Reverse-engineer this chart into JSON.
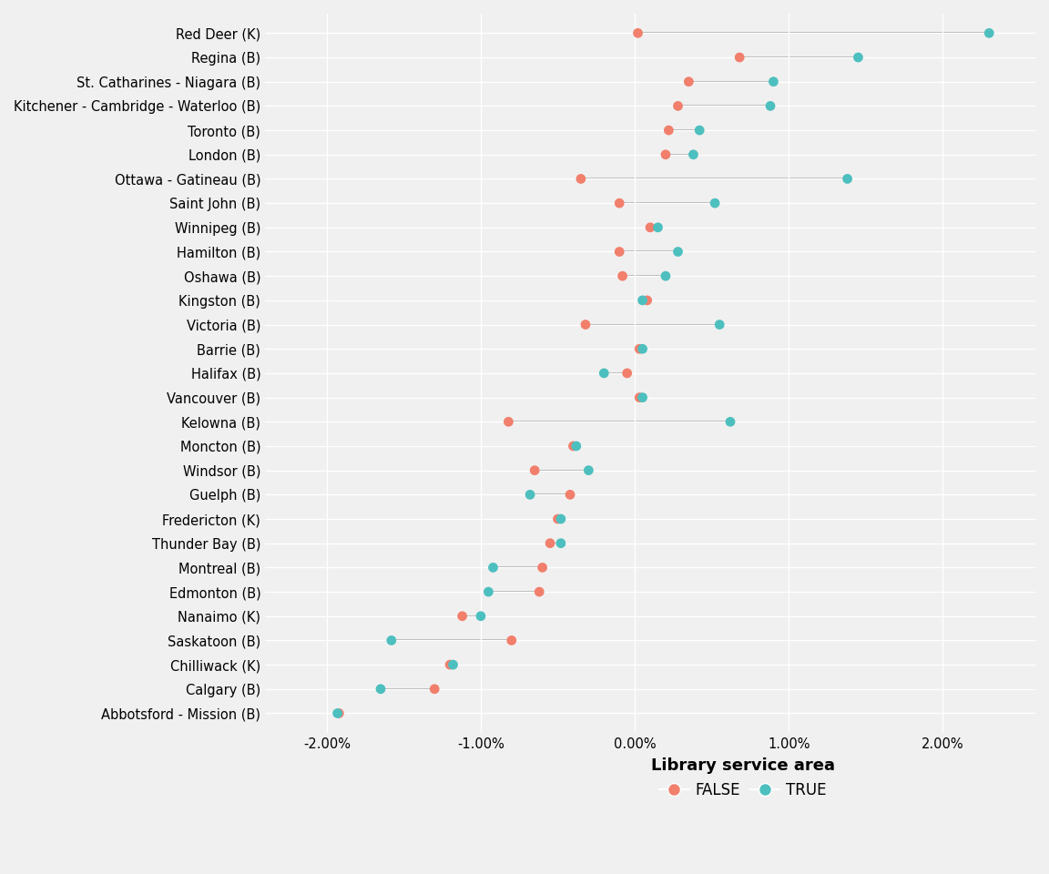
{
  "cities": [
    "Red Deer (K)",
    "Regina (B)",
    "St. Catharines - Niagara (B)",
    "Kitchener - Cambridge - Waterloo (B)",
    "Toronto (B)",
    "London (B)",
    "Ottawa - Gatineau (B)",
    "Saint John (B)",
    "Winnipeg (B)",
    "Hamilton (B)",
    "Oshawa (B)",
    "Kingston (B)",
    "Victoria (B)",
    "Barrie (B)",
    "Halifax (B)",
    "Vancouver (B)",
    "Kelowna (B)",
    "Moncton (B)",
    "Windsor (B)",
    "Guelph (B)",
    "Fredericton (K)",
    "Thunder Bay (B)",
    "Montreal (B)",
    "Edmonton (B)",
    "Nanaimo (K)",
    "Saskatoon (B)",
    "Chilliwack (K)",
    "Calgary (B)",
    "Abbotsford - Mission (B)"
  ],
  "false_values": [
    0.02,
    0.68,
    0.35,
    0.28,
    0.22,
    0.2,
    -0.35,
    -0.1,
    0.1,
    -0.1,
    -0.08,
    0.08,
    -0.32,
    0.03,
    -0.05,
    0.03,
    -0.82,
    -0.4,
    -0.65,
    -0.42,
    -0.5,
    -0.55,
    -0.6,
    -0.62,
    -1.12,
    -0.8,
    -1.2,
    -1.3,
    -1.92
  ],
  "true_values": [
    2.3,
    1.45,
    0.9,
    0.88,
    0.42,
    0.38,
    1.38,
    0.52,
    0.15,
    0.28,
    0.2,
    0.05,
    0.55,
    0.05,
    -0.2,
    0.05,
    0.62,
    -0.38,
    -0.3,
    -0.68,
    -0.48,
    -0.48,
    -0.92,
    -0.95,
    -1.0,
    -1.58,
    -1.18,
    -1.65,
    -1.93
  ],
  "false_color": "#F17F6C",
  "true_color": "#4DBFBF",
  "line_color": "#AAAAAA",
  "bg_color": "#F0F0F0",
  "grid_color": "#FFFFFF",
  "tick_fontsize": 10.5,
  "legend_title_fontsize": 13,
  "legend_fontsize": 12,
  "xlim_min": -2.4,
  "xlim_max": 2.6,
  "xticks": [
    -2.0,
    -1.0,
    0.0,
    1.0,
    2.0
  ]
}
